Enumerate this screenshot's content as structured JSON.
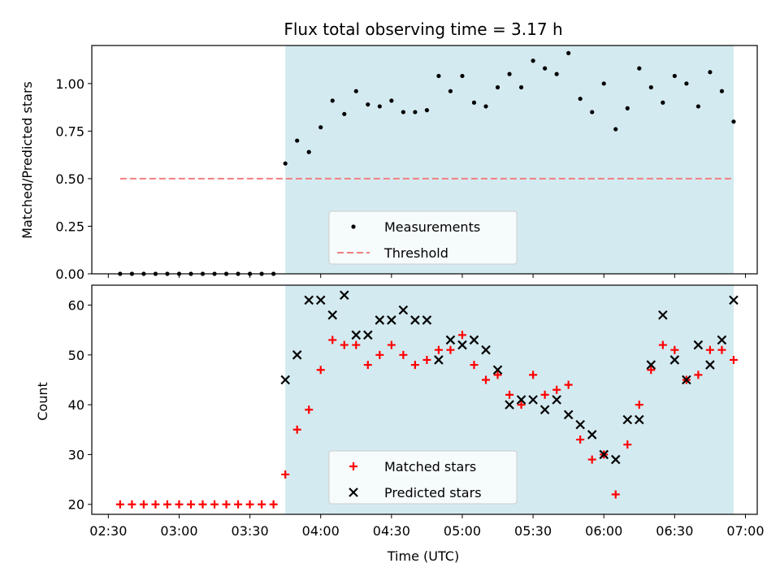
{
  "chart_data": [
    {
      "type": "scatter",
      "panel": "top",
      "title": "Flux total observing time = 3.17 h",
      "ylabel": "Matched/Predicted stars",
      "xlabel": "",
      "ylim": [
        0,
        1.2
      ],
      "yticks": [
        0.0,
        0.25,
        0.5,
        0.75,
        1.0
      ],
      "ytick_labels": [
        "0.00",
        "0.25",
        "0.50",
        "0.75",
        "1.00"
      ],
      "shaded_interval": [
        "03:45",
        "06:55"
      ],
      "shade_color": "#d3eaf0",
      "legend": {
        "placement": "lower center",
        "entries": [
          "Measurements",
          "Threshold"
        ]
      },
      "series": [
        {
          "name": "Measurements",
          "marker": "dot",
          "color": "#000000",
          "points": [
            [
              "02:35",
              0
            ],
            [
              "02:40",
              0
            ],
            [
              "02:45",
              0
            ],
            [
              "02:50",
              0
            ],
            [
              "02:55",
              0
            ],
            [
              "03:00",
              0
            ],
            [
              "03:05",
              0
            ],
            [
              "03:10",
              0
            ],
            [
              "03:15",
              0
            ],
            [
              "03:20",
              0
            ],
            [
              "03:25",
              0
            ],
            [
              "03:30",
              0
            ],
            [
              "03:35",
              0
            ],
            [
              "03:40",
              0
            ],
            [
              "03:45",
              0.58
            ],
            [
              "03:50",
              0.7
            ],
            [
              "03:55",
              0.64
            ],
            [
              "04:00",
              0.77
            ],
            [
              "04:05",
              0.91
            ],
            [
              "04:10",
              0.84
            ],
            [
              "04:15",
              0.96
            ],
            [
              "04:20",
              0.89
            ],
            [
              "04:25",
              0.88
            ],
            [
              "04:30",
              0.91
            ],
            [
              "04:35",
              0.85
            ],
            [
              "04:40",
              0.85
            ],
            [
              "04:45",
              0.86
            ],
            [
              "04:50",
              1.04
            ],
            [
              "04:55",
              0.96
            ],
            [
              "05:00",
              1.04
            ],
            [
              "05:05",
              0.9
            ],
            [
              "05:10",
              0.88
            ],
            [
              "05:15",
              0.98
            ],
            [
              "05:20",
              1.05
            ],
            [
              "05:25",
              0.98
            ],
            [
              "05:30",
              1.12
            ],
            [
              "05:35",
              1.08
            ],
            [
              "05:40",
              1.05
            ],
            [
              "05:45",
              1.16
            ],
            [
              "05:50",
              0.92
            ],
            [
              "05:55",
              0.85
            ],
            [
              "06:00",
              1.0
            ],
            [
              "06:05",
              0.76
            ],
            [
              "06:10",
              0.87
            ],
            [
              "06:15",
              1.08
            ],
            [
              "06:20",
              0.98
            ],
            [
              "06:25",
              0.9
            ],
            [
              "06:30",
              1.04
            ],
            [
              "06:35",
              1.0
            ],
            [
              "06:40",
              0.88
            ],
            [
              "06:45",
              1.06
            ],
            [
              "06:50",
              0.96
            ],
            [
              "06:55",
              0.8
            ]
          ]
        },
        {
          "name": "Threshold",
          "style": "dashed",
          "color": "#f08080",
          "points": [
            [
              "02:35",
              0.5
            ],
            [
              "06:55",
              0.5
            ]
          ]
        }
      ]
    },
    {
      "type": "scatter",
      "panel": "bottom",
      "ylabel": "Count",
      "xlabel": "Time (UTC)",
      "ylim": [
        18,
        64
      ],
      "xlim": [
        "02:23",
        "07:05"
      ],
      "yticks": [
        20,
        30,
        40,
        50,
        60
      ],
      "xticks": [
        "02:30",
        "03:00",
        "03:30",
        "04:00",
        "04:30",
        "05:00",
        "05:30",
        "06:00",
        "06:30",
        "07:00"
      ],
      "shaded_interval": [
        "03:45",
        "06:55"
      ],
      "shade_color": "#d3eaf0",
      "legend": {
        "placement": "lower center",
        "entries": [
          "Matched stars",
          "Predicted stars"
        ]
      },
      "series": [
        {
          "name": "Matched stars",
          "marker": "plus",
          "color": "#ff0000",
          "points": [
            [
              "02:35",
              20
            ],
            [
              "02:40",
              20
            ],
            [
              "02:45",
              20
            ],
            [
              "02:50",
              20
            ],
            [
              "02:55",
              20
            ],
            [
              "03:00",
              20
            ],
            [
              "03:05",
              20
            ],
            [
              "03:10",
              20
            ],
            [
              "03:15",
              20
            ],
            [
              "03:20",
              20
            ],
            [
              "03:25",
              20
            ],
            [
              "03:30",
              20
            ],
            [
              "03:35",
              20
            ],
            [
              "03:40",
              20
            ],
            [
              "03:45",
              26
            ],
            [
              "03:50",
              35
            ],
            [
              "03:55",
              39
            ],
            [
              "04:00",
              47
            ],
            [
              "04:05",
              53
            ],
            [
              "04:10",
              52
            ],
            [
              "04:15",
              52
            ],
            [
              "04:20",
              48
            ],
            [
              "04:25",
              50
            ],
            [
              "04:30",
              52
            ],
            [
              "04:35",
              50
            ],
            [
              "04:40",
              48
            ],
            [
              "04:45",
              49
            ],
            [
              "04:50",
              51
            ],
            [
              "04:55",
              51
            ],
            [
              "05:00",
              54
            ],
            [
              "05:05",
              48
            ],
            [
              "05:10",
              45
            ],
            [
              "05:15",
              46
            ],
            [
              "05:20",
              42
            ],
            [
              "05:25",
              40
            ],
            [
              "05:30",
              46
            ],
            [
              "05:35",
              42
            ],
            [
              "05:40",
              43
            ],
            [
              "05:45",
              44
            ],
            [
              "05:50",
              33
            ],
            [
              "05:55",
              29
            ],
            [
              "06:00",
              30
            ],
            [
              "06:05",
              22
            ],
            [
              "06:10",
              32
            ],
            [
              "06:15",
              40
            ],
            [
              "06:20",
              47
            ],
            [
              "06:25",
              52
            ],
            [
              "06:30",
              51
            ],
            [
              "06:35",
              45
            ],
            [
              "06:40",
              46
            ],
            [
              "06:45",
              51
            ],
            [
              "06:50",
              51
            ],
            [
              "06:55",
              49
            ]
          ]
        },
        {
          "name": "Predicted stars",
          "marker": "x",
          "color": "#000000",
          "points": [
            [
              "03:45",
              45
            ],
            [
              "03:50",
              50
            ],
            [
              "03:55",
              61
            ],
            [
              "04:00",
              61
            ],
            [
              "04:05",
              58
            ],
            [
              "04:10",
              62
            ],
            [
              "04:15",
              54
            ],
            [
              "04:20",
              54
            ],
            [
              "04:25",
              57
            ],
            [
              "04:30",
              57
            ],
            [
              "04:35",
              59
            ],
            [
              "04:40",
              57
            ],
            [
              "04:45",
              57
            ],
            [
              "04:50",
              49
            ],
            [
              "04:55",
              53
            ],
            [
              "05:00",
              52
            ],
            [
              "05:05",
              53
            ],
            [
              "05:10",
              51
            ],
            [
              "05:15",
              47
            ],
            [
              "05:20",
              40
            ],
            [
              "05:25",
              41
            ],
            [
              "05:30",
              41
            ],
            [
              "05:35",
              39
            ],
            [
              "05:40",
              41
            ],
            [
              "05:45",
              38
            ],
            [
              "05:50",
              36
            ],
            [
              "05:55",
              34
            ],
            [
              "06:00",
              30
            ],
            [
              "06:05",
              29
            ],
            [
              "06:10",
              37
            ],
            [
              "06:15",
              37
            ],
            [
              "06:20",
              48
            ],
            [
              "06:25",
              58
            ],
            [
              "06:30",
              49
            ],
            [
              "06:35",
              45
            ],
            [
              "06:40",
              52
            ],
            [
              "06:45",
              48
            ],
            [
              "06:50",
              53
            ],
            [
              "06:55",
              61
            ]
          ]
        }
      ]
    }
  ]
}
